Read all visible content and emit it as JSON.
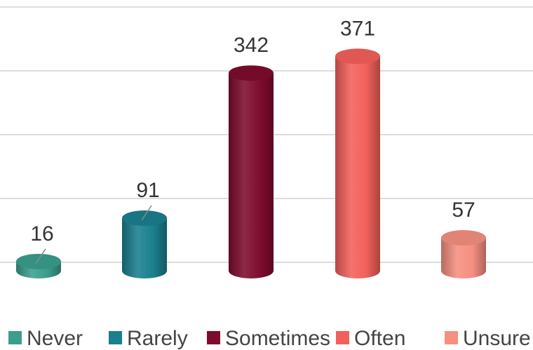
{
  "chart_data": {
    "type": "bar",
    "categories": [
      "Never",
      "Rarely",
      "Sometimes",
      "Often",
      "Unsure"
    ],
    "values": [
      16,
      91,
      342,
      371,
      57
    ],
    "colors": [
      "#3a9e8c",
      "#1a7f8e",
      "#7e0c2e",
      "#f2605a",
      "#f58f80"
    ],
    "ylim": [
      0,
      400
    ],
    "grid": true,
    "legend_position": "bottom",
    "data_labels": [
      "16",
      "91",
      "342",
      "371",
      "57"
    ]
  }
}
